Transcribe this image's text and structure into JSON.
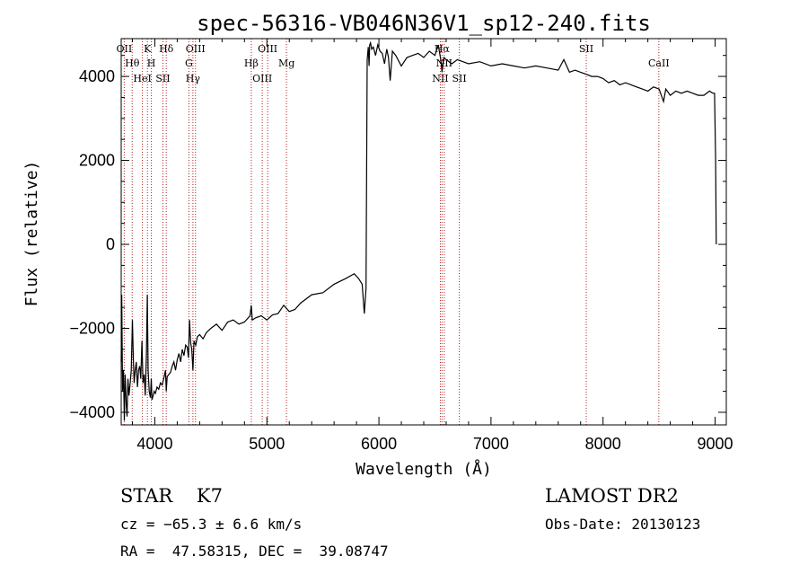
{
  "chart_data": {
    "type": "line",
    "title": "spec-56316-VB046N36V1_sp12-240.fits",
    "xlabel": "Wavelength (Å)",
    "ylabel": "Flux (relative)",
    "xlim": [
      3700,
      9100
    ],
    "ylim": [
      -4300,
      4900
    ],
    "xticks": [
      4000,
      5000,
      6000,
      7000,
      8000,
      9000
    ],
    "yticks": [
      -4000,
      -2000,
      0,
      2000,
      4000
    ],
    "ytick_labels": [
      "−4000",
      "−2000",
      "0",
      "2000",
      "4000"
    ],
    "grid": false,
    "series": [
      {
        "x": [
          3700,
          3705,
          3712,
          3720,
          3728,
          3735,
          3745,
          3752,
          3760,
          3770,
          3780,
          3790,
          3800,
          3808,
          3815,
          3825,
          3835,
          3845,
          3855,
          3865,
          3875,
          3885,
          3895,
          3905,
          3915,
          3925,
          3933,
          3940,
          3950,
          3960,
          3968,
          3975,
          3985,
          3995,
          4005,
          4020,
          4035,
          4050,
          4065,
          4080,
          4095,
          4102,
          4110,
          4125,
          4140,
          4155,
          4170,
          4185,
          4200,
          4215,
          4230,
          4245,
          4260,
          4275,
          4290,
          4300,
          4310,
          4320,
          4330,
          4340,
          4350,
          4365,
          4380,
          4400,
          4430,
          4460,
          4500,
          4550,
          4600,
          4650,
          4700,
          4750,
          4800,
          4850,
          4861,
          4870,
          4900,
          4950,
          5000,
          5050,
          5100,
          5150,
          5200,
          5250,
          5300,
          5400,
          5500,
          5600,
          5700,
          5780,
          5820,
          5850,
          5870,
          5885,
          5895,
          5905,
          5912,
          5918,
          5925,
          5935,
          5950,
          5970,
          5990,
          6010,
          6030,
          6050,
          6070,
          6085,
          6100,
          6120,
          6150,
          6200,
          6250,
          6300,
          6350,
          6400,
          6450,
          6500,
          6530,
          6555,
          6563,
          6580,
          6600,
          6650,
          6700,
          6750,
          6800,
          6900,
          7000,
          7100,
          7200,
          7300,
          7400,
          7500,
          7600,
          7650,
          7700,
          7750,
          7800,
          7850,
          7900,
          7950,
          8000,
          8050,
          8100,
          8150,
          8200,
          8250,
          8300,
          8350,
          8400,
          8450,
          8500,
          8540,
          8560,
          8600,
          8650,
          8700,
          8750,
          8800,
          8850,
          8900,
          8950,
          8980,
          8995,
          9005,
          9010
        ],
        "y": [
          -2800,
          -1200,
          -3500,
          -3000,
          -4200,
          -3100,
          -3800,
          -4100,
          -3200,
          -3600,
          -3300,
          -3000,
          -1800,
          -2700,
          -3300,
          -3000,
          -2800,
          -3400,
          -3000,
          -2900,
          -3200,
          -2300,
          -3300,
          -3100,
          -3600,
          -2600,
          -1200,
          -3000,
          -3500,
          -3650,
          -3200,
          -3700,
          -3600,
          -3500,
          -3550,
          -3400,
          -3450,
          -3300,
          -3350,
          -3200,
          -3000,
          -3500,
          -3150,
          -3100,
          -3050,
          -2900,
          -2800,
          -3000,
          -2750,
          -2600,
          -2800,
          -2500,
          -2650,
          -2400,
          -2450,
          -2700,
          -1800,
          -2350,
          -2500,
          -3000,
          -2300,
          -2400,
          -2200,
          -2150,
          -2250,
          -2100,
          -2000,
          -1900,
          -2050,
          -1850,
          -1800,
          -1900,
          -1850,
          -1700,
          -1450,
          -1800,
          -1750,
          -1700,
          -1800,
          -1680,
          -1650,
          -1450,
          -1600,
          -1550,
          -1400,
          -1200,
          -1150,
          -950,
          -820,
          -700,
          -820,
          -950,
          -1650,
          -1050,
          4400,
          4700,
          4250,
          4750,
          4800,
          4650,
          4700,
          4500,
          4750,
          4600,
          4550,
          4300,
          4650,
          4450,
          3900,
          4600,
          4500,
          4250,
          4450,
          4500,
          4550,
          4450,
          4600,
          4500,
          4750,
          4350,
          4100,
          4450,
          4400,
          4300,
          4400,
          4350,
          4300,
          4350,
          4250,
          4300,
          4250,
          4200,
          4250,
          4200,
          4150,
          4400,
          4100,
          4150,
          4100,
          4050,
          4000,
          4000,
          3950,
          3850,
          3900,
          3800,
          3850,
          3800,
          3750,
          3700,
          3650,
          3750,
          3700,
          3400,
          3700,
          3550,
          3650,
          3600,
          3650,
          3600,
          3550,
          3550,
          3650,
          3600,
          3600,
          2000,
          0
        ]
      }
    ],
    "line_marks": [
      {
        "x": 3727,
        "label": "OII"
      },
      {
        "x": 3798,
        "label": "Hθ"
      },
      {
        "x": 3889,
        "label": "HeI"
      },
      {
        "x": 3934,
        "label": "K"
      },
      {
        "x": 3969,
        "label": "H"
      },
      {
        "x": 4072,
        "label": "SII"
      },
      {
        "x": 4102,
        "label": "Hδ"
      },
      {
        "x": 4304,
        "label": "G"
      },
      {
        "x": 4340,
        "label": "Hγ"
      },
      {
        "x": 4363,
        "label": "OIII"
      },
      {
        "x": 4861,
        "label": "Hβ"
      },
      {
        "x": 4959,
        "label": "OIII"
      },
      {
        "x": 5007,
        "label": "OIII"
      },
      {
        "x": 5175,
        "label": "Mg"
      },
      {
        "x": 6548,
        "label": "NII"
      },
      {
        "x": 6563,
        "label": "Hα"
      },
      {
        "x": 6583,
        "label": "NII"
      },
      {
        "x": 6717,
        "label": "SII"
      },
      {
        "x": 7850,
        "label": "SII"
      },
      {
        "x": 8498,
        "label": "CaII"
      }
    ]
  },
  "info": {
    "class_line": "STAR    K7",
    "survey": "LAMOST DR2",
    "cz": "cz = −65.3 ± 6.6 km/s",
    "obs_date": "Obs-Date: 20130123",
    "coords": "RA =  47.58315, DEC =  39.08747"
  }
}
